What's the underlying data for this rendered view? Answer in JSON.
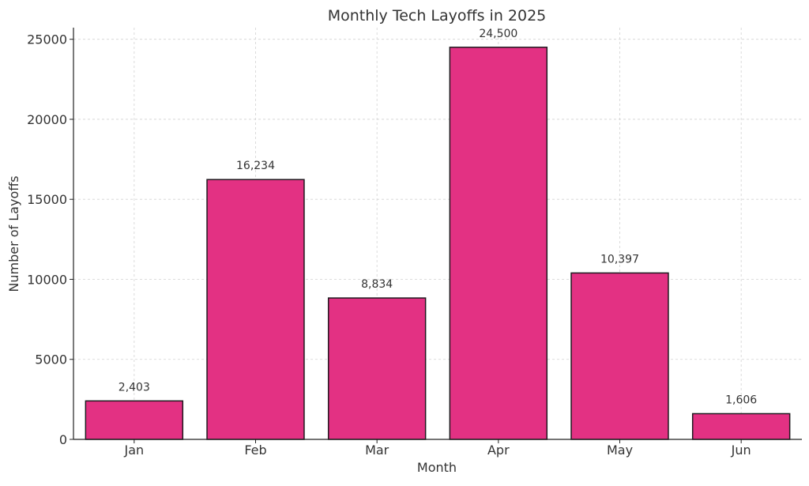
{
  "chart_data": {
    "type": "bar",
    "title": "Monthly Tech Layoffs in 2025",
    "xlabel": "Month",
    "ylabel": "Number of Layoffs",
    "categories": [
      "Jan",
      "Feb",
      "Mar",
      "Apr",
      "May",
      "Jun"
    ],
    "values": [
      2403,
      16234,
      8834,
      24500,
      10397,
      1606
    ],
    "value_labels": [
      "2,403",
      "16,234",
      "8,834",
      "24,500",
      "10,397",
      "1,606"
    ],
    "y_ticks": [
      0,
      5000,
      10000,
      15000,
      20000,
      25000
    ],
    "y_tick_labels": [
      "0",
      "5000",
      "10000",
      "15000",
      "20000",
      "25000"
    ],
    "ylim": [
      0,
      25725
    ],
    "grid": true,
    "colors": {
      "bar_fill": "#e33183",
      "bar_stroke": "#1f1a1f",
      "grid": "#d2d2d2",
      "axis": "#222222",
      "text": "#333333"
    }
  }
}
